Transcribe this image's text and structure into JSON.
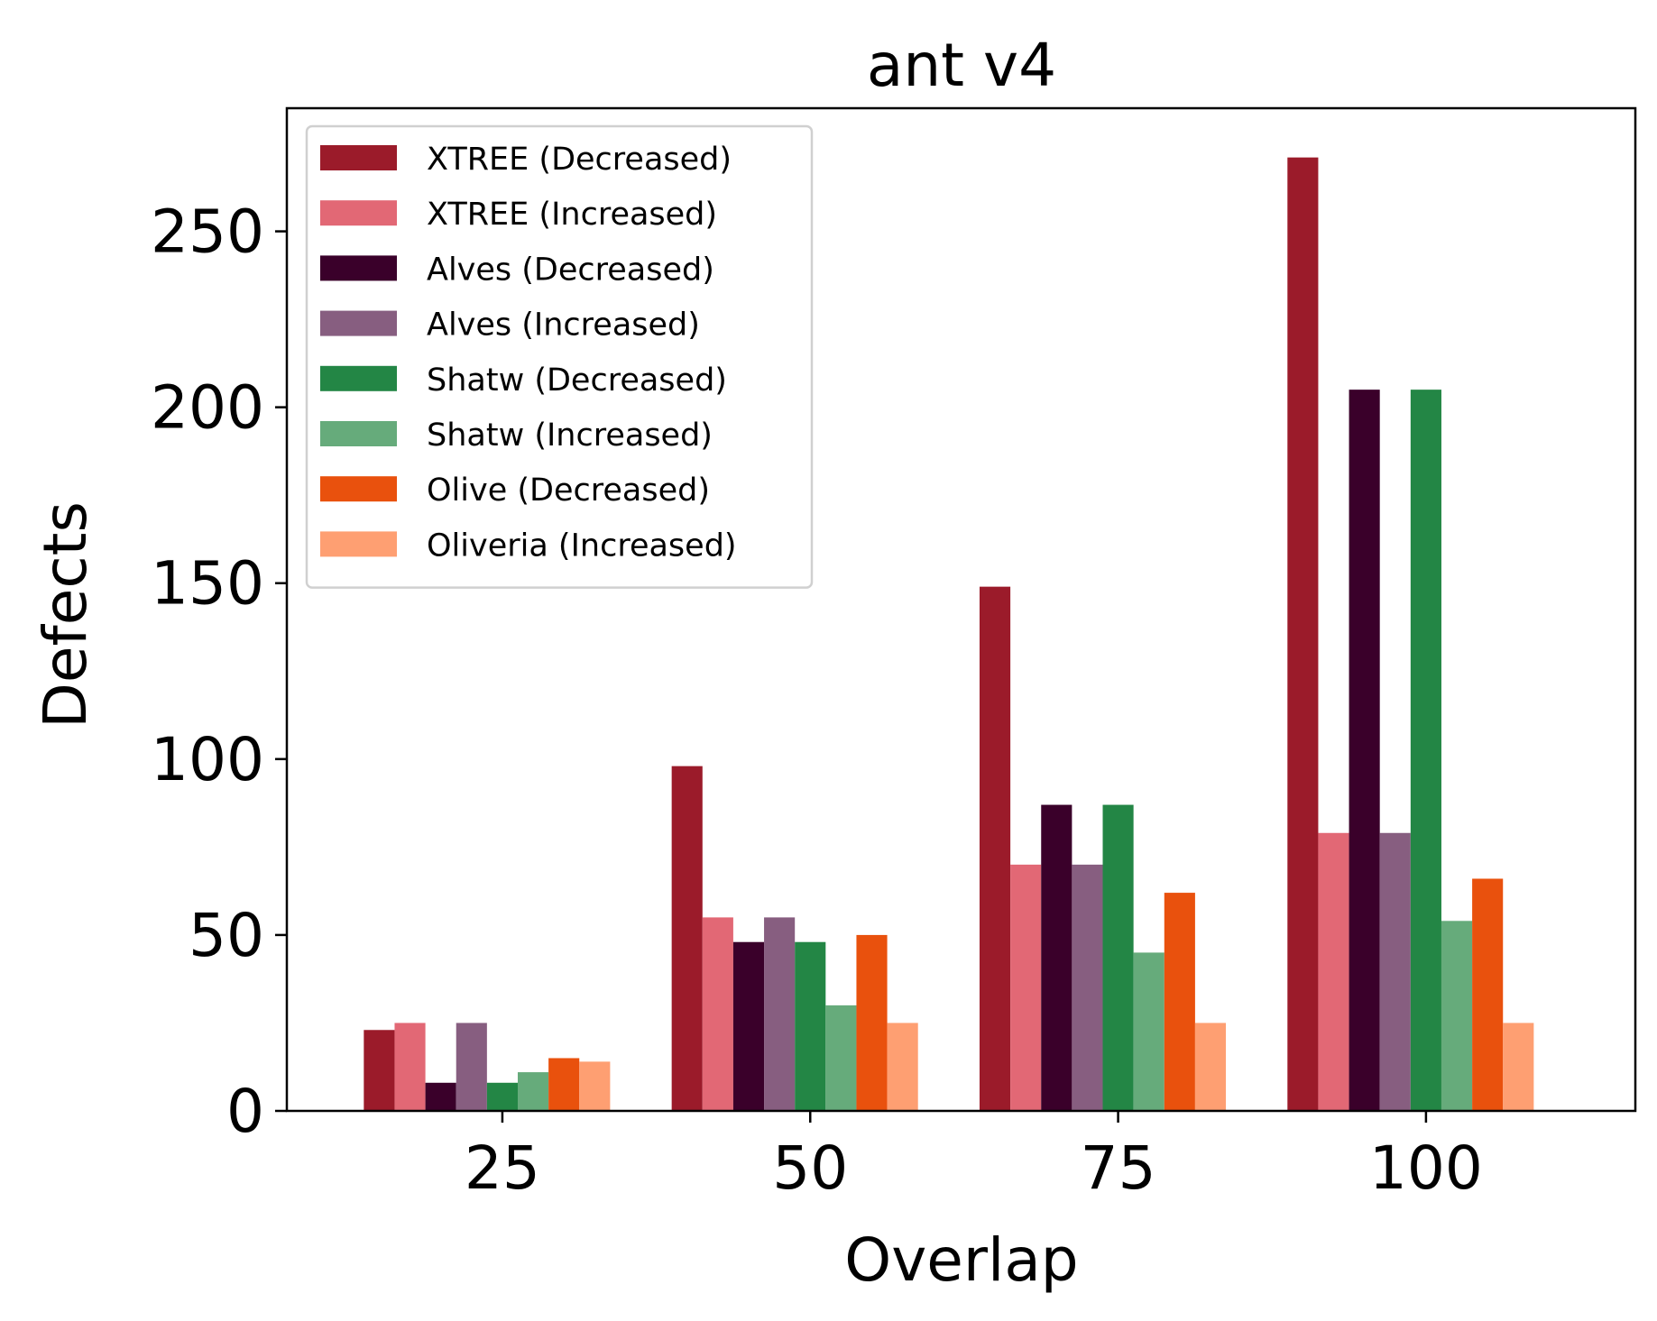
{
  "chart_data": {
    "type": "bar",
    "title": "ant v4",
    "xlabel": "Overlap",
    "ylabel": "Defects",
    "categories": [
      "25",
      "50",
      "75",
      "100"
    ],
    "ylim": [
      0,
      285
    ],
    "yticks": [
      0,
      50,
      100,
      150,
      200,
      250
    ],
    "grid": false,
    "legend_position": "top-left",
    "series": [
      {
        "name": "XTREE (Decreased)",
        "color": "#9b1b2a",
        "values": [
          23,
          98,
          149,
          271
        ]
      },
      {
        "name": "XTREE (Increased)",
        "color": "#e26875",
        "values": [
          25,
          55,
          70,
          79
        ]
      },
      {
        "name": "Alves (Decreased)",
        "color": "#3a002a",
        "values": [
          8,
          48,
          87,
          205
        ]
      },
      {
        "name": "Alves (Increased)",
        "color": "#875e80",
        "values": [
          25,
          55,
          70,
          79
        ]
      },
      {
        "name": "Shatw (Decreased)",
        "color": "#238645",
        "values": [
          8,
          48,
          87,
          205
        ]
      },
      {
        "name": "Shatw (Increased)",
        "color": "#66ab7b",
        "values": [
          11,
          30,
          45,
          54
        ]
      },
      {
        "name": "Olive (Decreased)",
        "color": "#e9510d",
        "values": [
          15,
          50,
          62,
          66
        ]
      },
      {
        "name": "Oliveria (Increased)",
        "color": "#fe9f72",
        "values": [
          14,
          25,
          25,
          25
        ]
      }
    ]
  }
}
